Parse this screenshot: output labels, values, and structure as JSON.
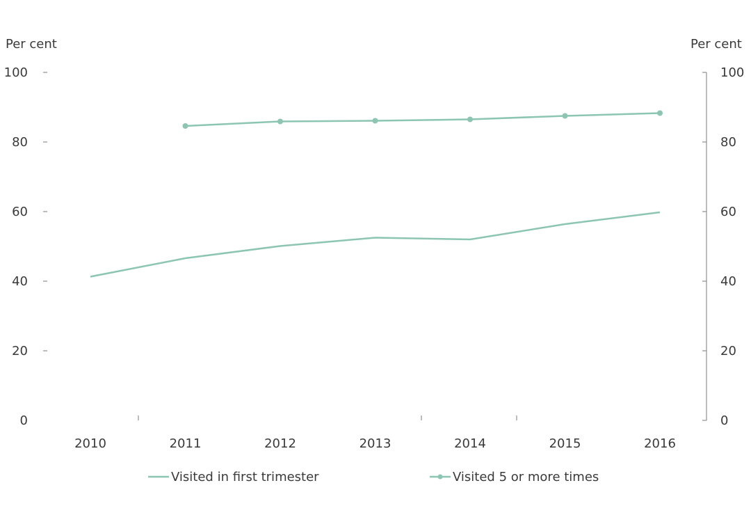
{
  "chart_data": {
    "type": "line",
    "left_axis_unit": "Per cent",
    "right_axis_unit": "Per cent",
    "categories": [
      "2010",
      "2011",
      "2012",
      "2013",
      "2014",
      "2015",
      "2016"
    ],
    "ylim": [
      0,
      100
    ],
    "y_ticks": [
      "0",
      "20",
      "40",
      "60",
      "80",
      "100"
    ],
    "grid": false,
    "legend_position": "bottom",
    "series": [
      {
        "name": "Visited in first trimester",
        "values": [
          41.3,
          46.6,
          50.1,
          52.5,
          52.0,
          56.4,
          59.8
        ],
        "color": "#8cc5b2",
        "markers": false
      },
      {
        "name": "Visited 5 or more times",
        "values": [
          null,
          84.6,
          85.9,
          86.1,
          86.5,
          87.5,
          88.3
        ],
        "color": "#8cc5b2",
        "markers": true
      }
    ]
  }
}
